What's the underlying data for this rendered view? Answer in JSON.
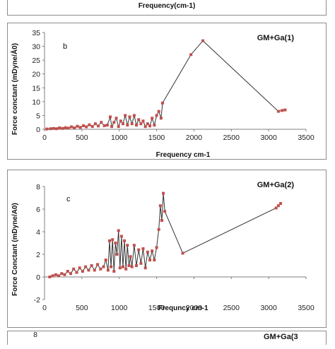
{
  "top_panel": {
    "xlabel": "Frequency(cm-1)"
  },
  "bottom_panel": {
    "ytick": "8",
    "series_label_partial": "GM+Ga(3"
  },
  "chart_data": [
    {
      "type": "line",
      "panel_letter": "b",
      "series_label": "GM+Ga(1)",
      "xlabel": "Frequency cm-1",
      "ylabel": "Force conctant  (mDyne/Å0)",
      "xlim": [
        0,
        3500
      ],
      "ylim": [
        0,
        35
      ],
      "xticks": [
        "0",
        "500",
        "1000",
        "1500",
        "2000",
        "2500",
        "3000",
        "3500"
      ],
      "yticks": [
        "0",
        "5",
        "10",
        "15",
        "20",
        "25",
        "30",
        "35"
      ],
      "grid": false,
      "line_color": "#333333",
      "marker_color": "#c0504d",
      "series": [
        {
          "x": [
            30,
            80,
            120,
            160,
            200,
            240,
            280,
            320,
            360,
            400,
            440,
            480,
            520,
            560,
            600,
            640,
            680,
            720,
            760,
            800,
            840,
            880,
            900,
            930,
            960,
            990,
            1020,
            1050,
            1080,
            1110,
            1140,
            1170,
            1200,
            1230,
            1260,
            1290,
            1320,
            1350,
            1380,
            1410,
            1440,
            1470,
            1500,
            1530,
            1560,
            1580,
            1960,
            2120,
            3130,
            3180,
            3220
          ],
          "y": [
            0.1,
            0.2,
            0.3,
            0.2,
            0.5,
            0.3,
            0.6,
            0.4,
            0.9,
            0.5,
            1.1,
            0.7,
            1.3,
            0.9,
            1.6,
            1.0,
            2.0,
            1.2,
            2.5,
            1.3,
            1.5,
            4.5,
            1.0,
            2.5,
            4.0,
            1.0,
            3.0,
            2.0,
            5.0,
            1.5,
            4.5,
            2.0,
            5.0,
            1.5,
            3.5,
            2.0,
            3.0,
            1.0,
            2.0,
            1.2,
            4.0,
            1.5,
            5.0,
            6.5,
            4.0,
            9.5,
            27.0,
            32.0,
            6.5,
            6.8,
            7.0
          ]
        }
      ]
    },
    {
      "type": "line",
      "panel_letter": "c",
      "series_label": "GM+Ga(2)",
      "xlabel": "Frequncy cm-1",
      "ylabel": "Force Conctant (mDyne/A0)",
      "xlim": [
        0,
        3500
      ],
      "ylim": [
        -2,
        8
      ],
      "xticks": [
        "0",
        "500",
        "1000",
        "1500",
        "2000",
        "2500",
        "3000",
        "3500"
      ],
      "yticks": [
        "-2",
        "0",
        "2",
        "4",
        "6",
        "8"
      ],
      "grid": false,
      "line_color": "#333333",
      "marker_color": "#c0504d",
      "series": [
        {
          "x": [
            70,
            110,
            150,
            190,
            230,
            270,
            310,
            350,
            390,
            430,
            470,
            510,
            550,
            590,
            630,
            670,
            710,
            750,
            790,
            820,
            850,
            870,
            890,
            910,
            930,
            950,
            970,
            990,
            1010,
            1030,
            1050,
            1070,
            1090,
            1110,
            1130,
            1150,
            1170,
            1200,
            1230,
            1260,
            1290,
            1320,
            1350,
            1380,
            1410,
            1440,
            1470,
            1500,
            1530,
            1550,
            1570,
            1590,
            1610,
            1850,
            3100,
            3130,
            3160
          ],
          "y": [
            0.0,
            0.1,
            0.2,
            0.1,
            0.3,
            0.2,
            0.5,
            0.3,
            0.7,
            0.4,
            0.8,
            0.5,
            0.9,
            0.6,
            1.0,
            0.6,
            1.1,
            0.7,
            0.9,
            1.5,
            0.6,
            3.2,
            0.9,
            3.3,
            0.5,
            3.0,
            2.0,
            4.1,
            0.8,
            3.6,
            0.9,
            3.2,
            0.7,
            2.8,
            1.0,
            1.8,
            0.9,
            2.8,
            1.0,
            2.4,
            1.2,
            2.5,
            0.8,
            2.2,
            1.5,
            2.3,
            1.5,
            2.6,
            4.2,
            6.3,
            5.0,
            7.4,
            5.8,
            2.1,
            6.1,
            6.3,
            6.5
          ]
        }
      ]
    }
  ]
}
